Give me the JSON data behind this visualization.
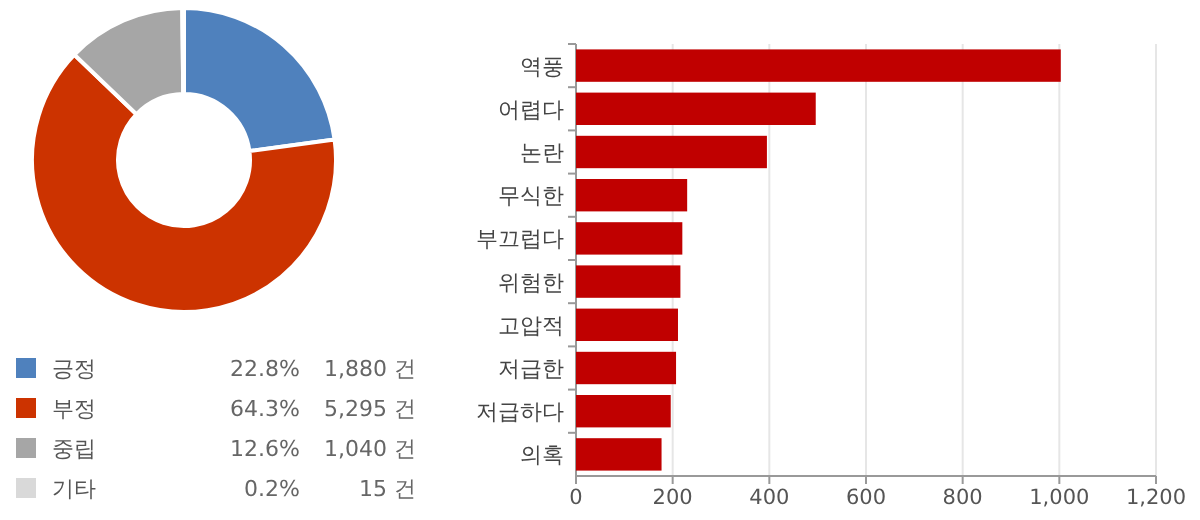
{
  "chart_data": [
    {
      "type": "donut",
      "categories": [
        "긍정",
        "부정",
        "중립",
        "기타"
      ],
      "values": [
        1880,
        5295,
        1040,
        15
      ],
      "colors": [
        "#4f81bd",
        "#cc3300",
        "#a6a6a6",
        "#d9d9d9"
      ],
      "value_labels": [
        "22.8%  1,880 건",
        "64.3%  5,295 건",
        "12.6%  1,040 건",
        "0.2%  15 건"
      ],
      "legend": "bottom"
    },
    {
      "type": "bar",
      "orientation": "horizontal",
      "categories": [
        "역풍",
        "어렵다",
        "논란",
        "무식한",
        "부끄럽다",
        "위험한",
        "고압적",
        "저급한",
        "저급하다",
        "의혹"
      ],
      "series": [
        {
          "color": "#c00000",
          "values": [
            1003,
            496,
            395,
            230,
            220,
            216,
            211,
            207,
            196,
            177
          ]
        }
      ],
      "xlim": [
        0,
        1200
      ],
      "xticks": [
        {
          "value": 0,
          "label": "0"
        },
        {
          "value": 200,
          "label": "200"
        },
        {
          "value": 400,
          "label": "400"
        },
        {
          "value": 600,
          "label": "600"
        },
        {
          "value": 800,
          "label": "800"
        },
        {
          "value": 1000,
          "label": "1,000"
        },
        {
          "value": 1200,
          "label": "1,200"
        }
      ],
      "grid": "x"
    }
  ]
}
